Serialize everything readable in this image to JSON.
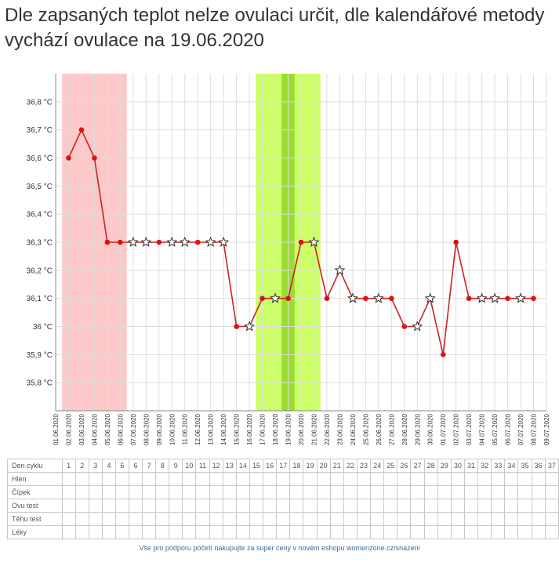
{
  "title": "Dle zapsaných teplot nelze ovulaci určit, dle kalendářové metody vychází ovulace na 19.06.2020",
  "colors": {
    "menstruation": "#ffc8c8",
    "fertile": "#ccff66",
    "ovulation": "#99dd33",
    "line": "#cc2222",
    "point": "#dd1111",
    "grid": "#dddddd"
  },
  "chart_data": {
    "type": "line",
    "y_ticks": [
      "35,8 °C",
      "35,9 °C",
      "36 °C",
      "36,1 °C",
      "36,2 °C",
      "36,3 °C",
      "36,4 °C",
      "36,5 °C",
      "36,6 °C",
      "36,7 °C",
      "36,8 °C"
    ],
    "y_tick_values": [
      35.8,
      35.9,
      36.0,
      36.1,
      36.2,
      36.3,
      36.4,
      36.5,
      36.6,
      36.7,
      36.8
    ],
    "ylim": [
      35.7,
      36.9
    ],
    "x_labels": [
      "01.06.2020",
      "02.06.2020",
      "03.06.2020",
      "04.06.2020",
      "05.06.2020",
      "06.06.2020",
      "07.06.2020",
      "08.06.2020",
      "09.06.2020",
      "10.06.2020",
      "11.06.2020",
      "12.06.2020",
      "13.06.2020",
      "14.06.2020",
      "15.06.2020",
      "16.06.2020",
      "17.06.2020",
      "18.06.2020",
      "19.06.2020",
      "20.06.2020",
      "21.06.2020",
      "22.06.2020",
      "23.06.2020",
      "24.06.2020",
      "25.06.2020",
      "26.06.2020",
      "27.06.2020",
      "28.06.2020",
      "29.06.2020",
      "30.06.2020",
      "01.07.2020",
      "02.07.2020",
      "03.07.2020",
      "04.07.2020",
      "05.07.2020",
      "06.07.2020",
      "07.07.2020",
      "08.07.2020",
      "09.07.2020"
    ],
    "bands": [
      {
        "kind": "menstruation",
        "from": "02.06.2020",
        "to": "06.06.2020"
      },
      {
        "kind": "fertile",
        "from": "17.06.2020",
        "to": "21.06.2020"
      },
      {
        "kind": "ovulation",
        "from": "19.06.2020",
        "to": "19.06.2020"
      }
    ],
    "series": [
      {
        "points": [
          {
            "x": "02.06.2020",
            "y": 36.6,
            "m": "dot"
          },
          {
            "x": "03.06.2020",
            "y": 36.7,
            "m": "dot"
          },
          {
            "x": "04.06.2020",
            "y": 36.6,
            "m": "dot"
          },
          {
            "x": "05.06.2020",
            "y": 36.3,
            "m": "dot"
          },
          {
            "x": "06.06.2020",
            "y": 36.3,
            "m": "dot"
          },
          {
            "x": "07.06.2020",
            "y": 36.3,
            "m": "star"
          },
          {
            "x": "08.06.2020",
            "y": 36.3,
            "m": "star"
          },
          {
            "x": "09.06.2020",
            "y": 36.3,
            "m": "dot"
          },
          {
            "x": "10.06.2020",
            "y": 36.3,
            "m": "star"
          },
          {
            "x": "11.06.2020",
            "y": 36.3,
            "m": "star"
          },
          {
            "x": "12.06.2020",
            "y": 36.3,
            "m": "dot"
          },
          {
            "x": "13.06.2020",
            "y": 36.3,
            "m": "star"
          },
          {
            "x": "14.06.2020",
            "y": 36.3,
            "m": "star"
          },
          {
            "x": "15.06.2020",
            "y": 36.0,
            "m": "dot"
          },
          {
            "x": "16.06.2020",
            "y": 36.0,
            "m": "star"
          },
          {
            "x": "17.06.2020",
            "y": 36.1,
            "m": "dot"
          },
          {
            "x": "18.06.2020",
            "y": 36.1,
            "m": "star"
          },
          {
            "x": "19.06.2020",
            "y": 36.1,
            "m": "dot"
          },
          {
            "x": "20.06.2020",
            "y": 36.3,
            "m": "dot"
          },
          {
            "x": "21.06.2020",
            "y": 36.3,
            "m": "star"
          },
          {
            "x": "22.06.2020",
            "y": 36.1,
            "m": "dot"
          },
          {
            "x": "23.06.2020",
            "y": 36.2,
            "m": "star"
          },
          {
            "x": "24.06.2020",
            "y": 36.1,
            "m": "star"
          },
          {
            "x": "25.06.2020",
            "y": 36.1,
            "m": "dot"
          },
          {
            "x": "26.06.2020",
            "y": 36.1,
            "m": "star"
          },
          {
            "x": "27.06.2020",
            "y": 36.1,
            "m": "dot"
          },
          {
            "x": "28.06.2020",
            "y": 36.0,
            "m": "dot"
          },
          {
            "x": "29.06.2020",
            "y": 36.0,
            "m": "star"
          },
          {
            "x": "30.06.2020",
            "y": 36.1,
            "m": "star"
          },
          {
            "x": "01.07.2020",
            "y": 35.9,
            "m": "dot"
          },
          {
            "x": "02.07.2020",
            "y": 36.3,
            "m": "dot"
          },
          {
            "x": "03.07.2020",
            "y": 36.1,
            "m": "dot"
          },
          {
            "x": "04.07.2020",
            "y": 36.1,
            "m": "star"
          },
          {
            "x": "05.07.2020",
            "y": 36.1,
            "m": "star"
          },
          {
            "x": "06.07.2020",
            "y": 36.1,
            "m": "dot"
          },
          {
            "x": "07.07.2020",
            "y": 36.1,
            "m": "star"
          },
          {
            "x": "08.07.2020",
            "y": 36.1,
            "m": "dot"
          }
        ]
      }
    ],
    "grid": true
  },
  "table": {
    "header_label": "Den cyklu",
    "days": [
      "1",
      "2",
      "3",
      "4",
      "5",
      "6",
      "7",
      "8",
      "9",
      "10",
      "11",
      "12",
      "13",
      "14",
      "15",
      "16",
      "17",
      "18",
      "19",
      "20",
      "21",
      "22",
      "23",
      "24",
      "25",
      "26",
      "27",
      "28",
      "29",
      "30",
      "31",
      "32",
      "33",
      "34",
      "35",
      "36",
      "37"
    ],
    "rows": [
      "Hlen",
      "Čípek",
      "Ovu test",
      "Těhu test",
      "Léky"
    ]
  },
  "footer": "Vše pro podporu početí nakupujte za super ceny v novém eshopu womenzone.cz/snazeni"
}
